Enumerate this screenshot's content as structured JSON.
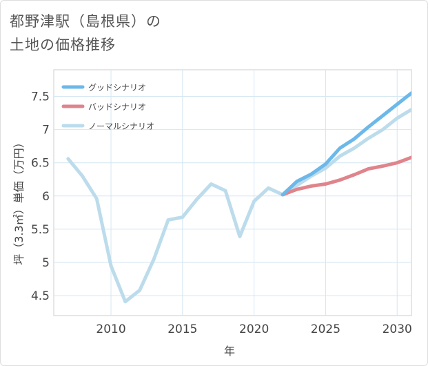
{
  "title": {
    "line1": "都野津駅（島根県）の",
    "line2": "土地の価格推移"
  },
  "chart_data": {
    "type": "line",
    "title": "都野津駅（島根県）の土地の価格推移",
    "xlabel": "年",
    "ylabel": "坪（3.3㎡）単価（万円）",
    "xlim": [
      2006,
      2031
    ],
    "ylim": [
      4.2,
      7.9
    ],
    "xticks": [
      2010,
      2015,
      2020,
      2025,
      2030
    ],
    "xtick_labels": [
      "2010",
      "2015",
      "2020",
      "2025",
      "2030"
    ],
    "yticks": [
      4.5,
      5,
      5.5,
      6,
      6.5,
      7,
      7.5
    ],
    "ytick_labels": [
      "4.5",
      "5",
      "5.5",
      "6",
      "6.5",
      "7",
      "7.5"
    ],
    "grid": true,
    "legend_position": "top-left",
    "series": [
      {
        "name": "グッドシナリオ",
        "color": "#6cb8ea",
        "x": [
          2022,
          2023,
          2024,
          2025,
          2026,
          2027,
          2028,
          2029,
          2030,
          2031
        ],
        "values": [
          6.02,
          6.22,
          6.33,
          6.48,
          6.72,
          6.86,
          7.04,
          7.21,
          7.38,
          7.55
        ]
      },
      {
        "name": "バッドシナリオ",
        "color": "#e0848c",
        "x": [
          2022,
          2023,
          2024,
          2025,
          2026,
          2027,
          2028,
          2029,
          2030,
          2031
        ],
        "values": [
          6.02,
          6.1,
          6.15,
          6.18,
          6.24,
          6.32,
          6.41,
          6.45,
          6.5,
          6.58
        ]
      },
      {
        "name": "ノーマルシナリオ",
        "color": "#bcdcec",
        "x": [
          2007,
          2008,
          2009,
          2010,
          2011,
          2012,
          2013,
          2014,
          2015,
          2016,
          2017,
          2018,
          2019,
          2020,
          2021,
          2022,
          2023,
          2024,
          2025,
          2026,
          2027,
          2028,
          2029,
          2030,
          2031
        ],
        "values": [
          6.56,
          6.3,
          5.96,
          4.95,
          4.41,
          4.58,
          5.05,
          5.64,
          5.68,
          5.95,
          6.18,
          6.08,
          5.39,
          5.92,
          6.12,
          6.02,
          6.16,
          6.3,
          6.42,
          6.6,
          6.72,
          6.87,
          7.0,
          7.17,
          7.3
        ]
      }
    ]
  }
}
